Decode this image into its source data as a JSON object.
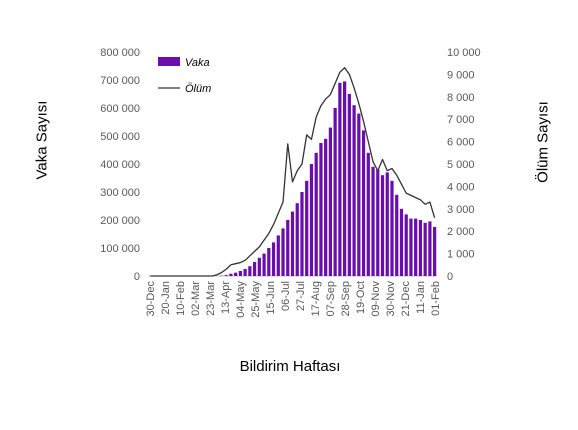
{
  "chart_data": {
    "type": "bar",
    "ylabel_left": "Vaka Sayısı",
    "ylabel_right": "Ölüm Sayısı",
    "xlabel": "Bildirim Haftası",
    "legend": {
      "position": "top-left-inside"
    },
    "y_left": {
      "lim": [
        0,
        800000
      ],
      "ticks": [
        "0",
        "100 000",
        "200 000",
        "300 000",
        "400 000",
        "500 000",
        "600 000",
        "700 000",
        "800 000"
      ]
    },
    "y_right": {
      "lim": [
        0,
        10000
      ],
      "ticks": [
        "0",
        "1 000",
        "2 000",
        "3 000",
        "4 000",
        "5 000",
        "6 000",
        "7 000",
        "8 000",
        "9 000",
        "10 000"
      ]
    },
    "x_tick_labels": [
      "30-Dec",
      "20-Jan",
      "10-Feb",
      "02-Mar",
      "23-Mar",
      "13-Apr",
      "04-May",
      "25-May",
      "15-Jun",
      "06-Jul",
      "27-Jul",
      "17-Aug",
      "07-Sep",
      "28-Sep",
      "19-Oct",
      "09-Nov",
      "30-Nov",
      "21-Dec",
      "11-Jan",
      "01-Feb"
    ],
    "series": [
      {
        "name": "Vaka",
        "type": "bar",
        "axis": "left",
        "color": "#6a0dad",
        "values": [
          0,
          0,
          0,
          0,
          0,
          0,
          0,
          0,
          0,
          0,
          0,
          0,
          0,
          0,
          0,
          1000,
          3000,
          8000,
          12000,
          18000,
          25000,
          35000,
          50000,
          65000,
          80000,
          100000,
          120000,
          145000,
          170000,
          200000,
          230000,
          260000,
          300000,
          340000,
          400000,
          440000,
          475000,
          490000,
          530000,
          600000,
          690000,
          695000,
          650000,
          610000,
          580000,
          520000,
          440000,
          390000,
          380000,
          360000,
          370000,
          340000,
          290000,
          240000,
          220000,
          205000,
          205000,
          200000,
          190000,
          195000,
          175000
        ]
      },
      {
        "name": "Ölüm",
        "type": "line",
        "axis": "right",
        "color": "#000000",
        "values": [
          0,
          0,
          0,
          0,
          0,
          0,
          0,
          0,
          0,
          0,
          0,
          0,
          0,
          0,
          50,
          150,
          300,
          500,
          550,
          600,
          700,
          900,
          1100,
          1300,
          1600,
          1900,
          2300,
          2800,
          3300,
          5900,
          4200,
          4700,
          5000,
          6300,
          6100,
          7100,
          7600,
          7900,
          8100,
          8600,
          9100,
          9300,
          9000,
          8400,
          7700,
          6900,
          6000,
          5100,
          4700,
          5200,
          4700,
          4800,
          4500,
          4100,
          3700,
          3600,
          3500,
          3400,
          3200,
          3300,
          2600
        ]
      }
    ]
  }
}
